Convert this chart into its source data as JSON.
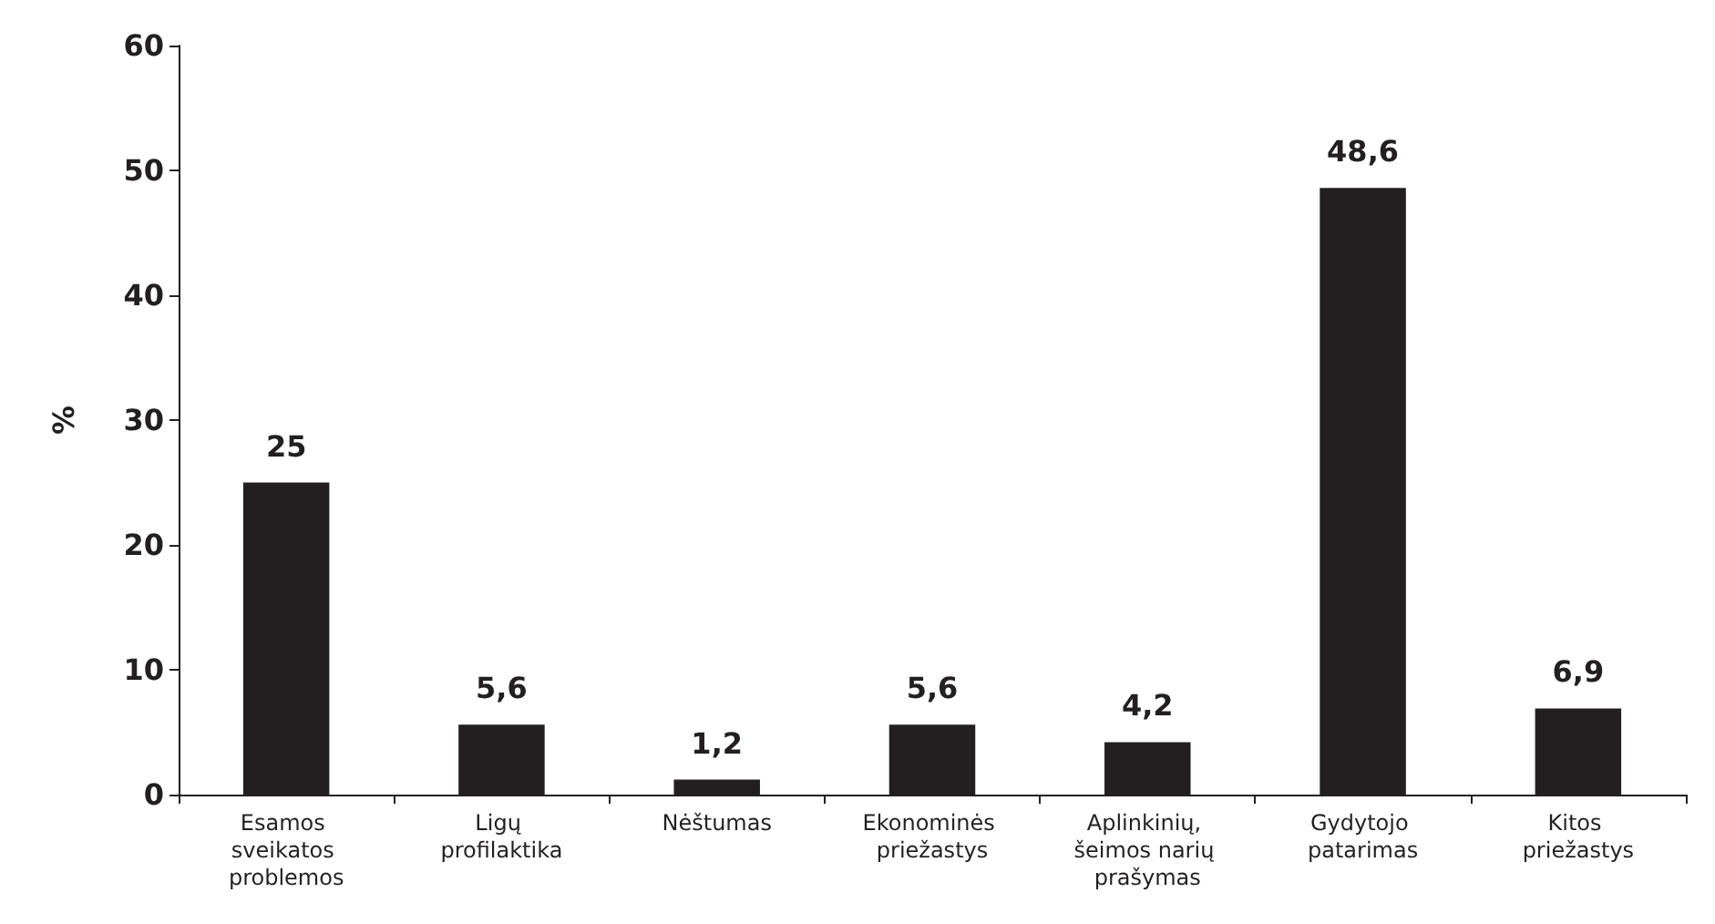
{
  "chart_data": {
    "type": "bar",
    "categories": [
      "Esamos sveikatos problemos",
      "Ligų profilaktika",
      "Nėštumas",
      "Ekonominės priežastys",
      "Aplinkinių, šeimos narių prašymas",
      "Gydytojo patarimas",
      "Kitos priežastys"
    ],
    "values": [
      25,
      5.6,
      1.2,
      5.6,
      4.2,
      48.6,
      6.9
    ],
    "value_labels": [
      "25",
      "5,6",
      "1,2",
      "5,6",
      "4,2",
      "48,6",
      "6,9"
    ],
    "color": "#231f20",
    "ylabel": "%",
    "ylim": [
      0,
      60
    ],
    "yticks": [
      0,
      10,
      20,
      30,
      40,
      50,
      60
    ],
    "grid": false
  }
}
